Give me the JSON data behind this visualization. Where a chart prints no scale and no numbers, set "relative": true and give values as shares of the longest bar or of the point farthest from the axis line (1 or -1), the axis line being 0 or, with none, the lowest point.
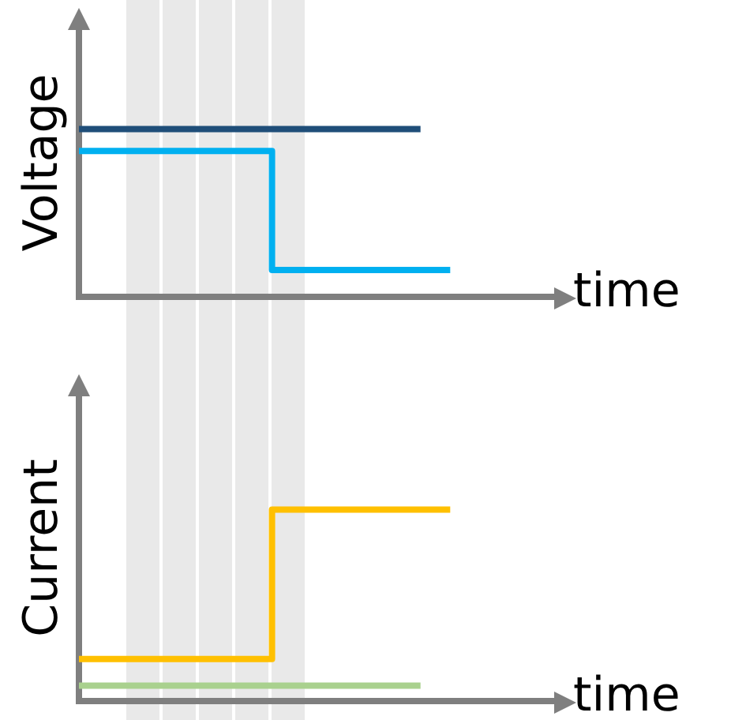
{
  "chart_data": [
    {
      "type": "step",
      "ylabel": "Voltage",
      "xlabel": "time",
      "relative": true,
      "tick_labels": false,
      "categories": [
        null,
        null,
        null,
        null,
        null,
        null,
        null,
        null,
        null,
        null,
        null,
        null,
        null,
        null,
        null,
        null,
        null,
        null,
        null,
        null,
        null,
        null,
        null,
        null,
        null,
        null,
        null,
        null,
        null,
        null,
        null,
        null,
        null
      ],
      "series": [
        {
          "color": "#1f4e79",
          "values": [
            1,
            1,
            1,
            1,
            1,
            1,
            1,
            1,
            1,
            1,
            1,
            1,
            1,
            1,
            1,
            1,
            1,
            1,
            1,
            1,
            1,
            1,
            1,
            1,
            null,
            null,
            null,
            null,
            null,
            null,
            null,
            null,
            null
          ]
        },
        {
          "color": "#00b0f0",
          "values": [
            0.87,
            0.87,
            0.87,
            0.87,
            0.87,
            0.87,
            0.87,
            0.87,
            0.87,
            0.87,
            0.87,
            0.87,
            0.87,
            0.87,
            0.16,
            0.16,
            0.16,
            0.16,
            0.16,
            0.16,
            0.16,
            0.16,
            0.16,
            0.16,
            0.16,
            0.16,
            null,
            null,
            null,
            null,
            null,
            null,
            null
          ]
        }
      ]
    },
    {
      "type": "step",
      "ylabel": "Current",
      "xlabel": "time",
      "relative": true,
      "tick_labels": false,
      "categories": [
        null,
        null,
        null,
        null,
        null,
        null,
        null,
        null,
        null,
        null,
        null,
        null,
        null,
        null,
        null,
        null,
        null,
        null,
        null,
        null,
        null,
        null,
        null,
        null,
        null,
        null,
        null,
        null,
        null,
        null,
        null,
        null,
        null
      ],
      "series": [
        {
          "color": "#ffc000",
          "values": [
            0.22,
            0.22,
            0.22,
            0.22,
            0.22,
            0.22,
            0.22,
            0.22,
            0.22,
            0.22,
            0.22,
            0.22,
            0.22,
            0.22,
            1,
            1,
            1,
            1,
            1,
            1,
            1,
            1,
            1,
            1,
            1,
            1,
            null,
            null,
            null,
            null,
            null,
            null,
            null
          ]
        },
        {
          "color": "#a9d18e",
          "values": [
            0.08,
            0.08,
            0.08,
            0.08,
            0.08,
            0.08,
            0.08,
            0.08,
            0.08,
            0.08,
            0.08,
            0.08,
            0.08,
            0.08,
            0.08,
            0.08,
            0.08,
            0.08,
            0.08,
            0.08,
            0.08,
            0.08,
            0.08,
            0.08,
            null,
            null,
            null,
            null,
            null,
            null,
            null,
            null,
            null
          ]
        }
      ]
    }
  ]
}
